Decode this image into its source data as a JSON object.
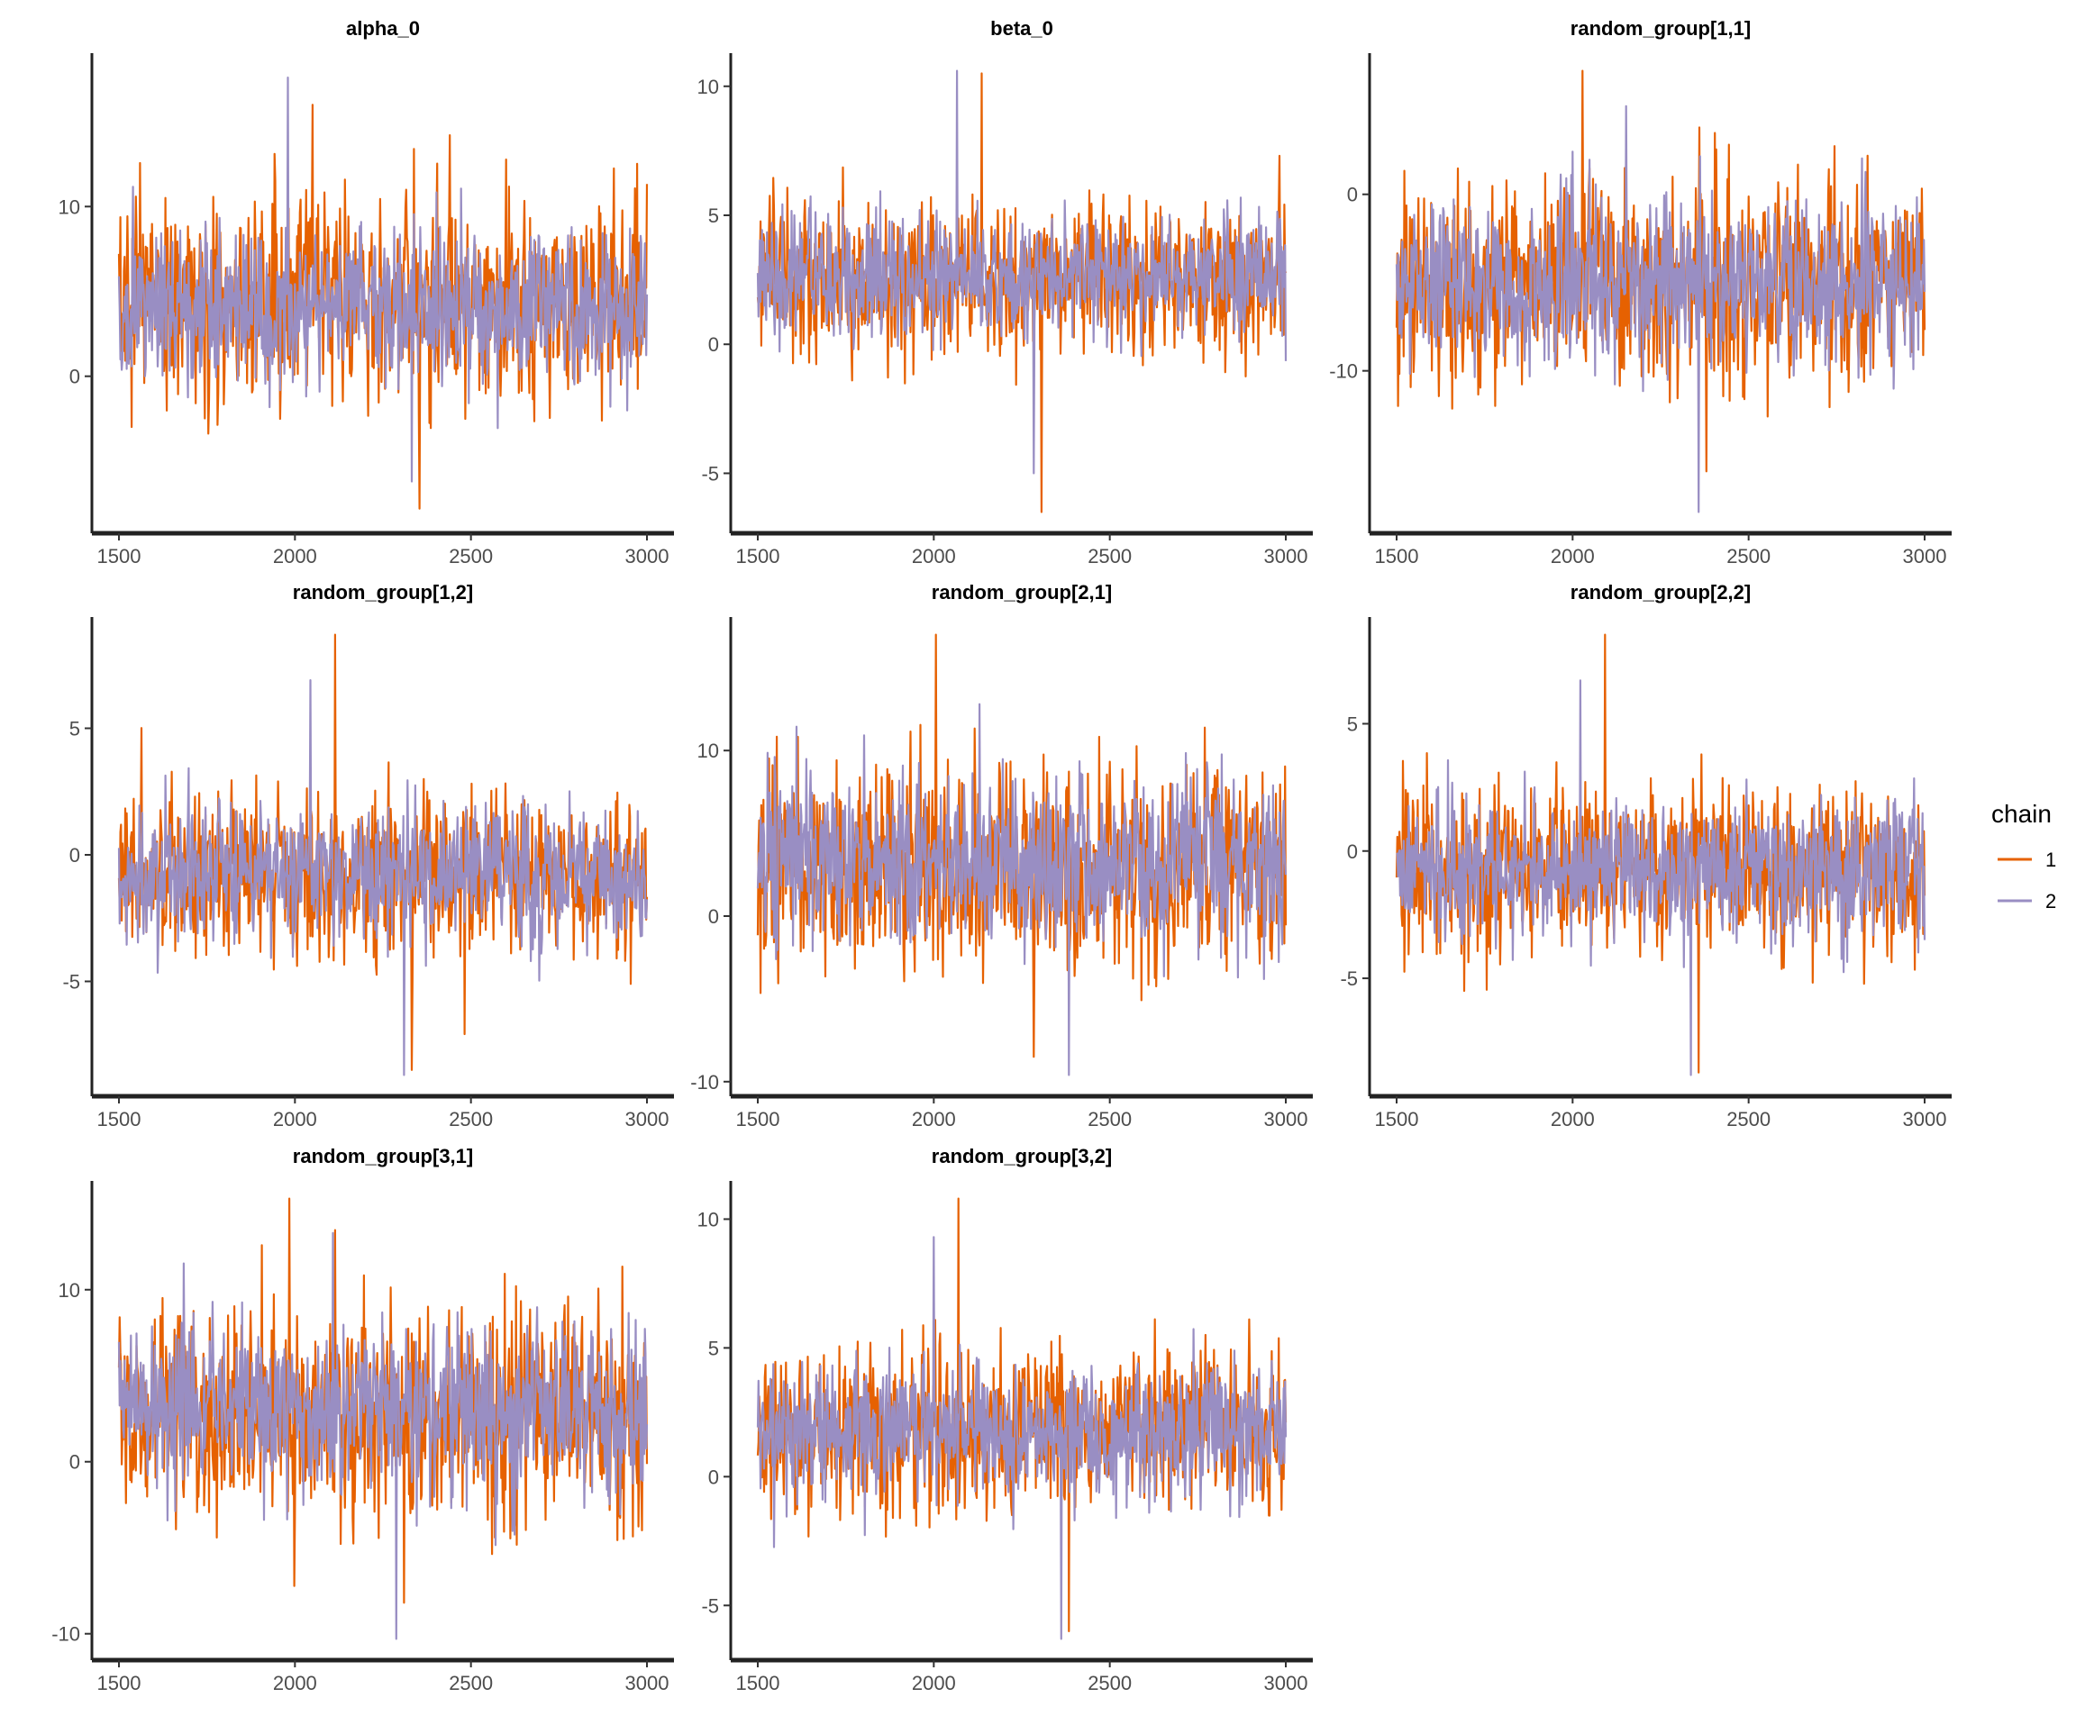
{
  "legend": {
    "title": "chain",
    "entries": [
      {
        "label": "1",
        "color": "#E66101"
      },
      {
        "label": "2",
        "color": "#998EC3"
      }
    ],
    "placement": "right"
  },
  "chart_data": [
    {
      "type": "line",
      "title": "alpha_0",
      "xlim": [
        1500,
        3000
      ],
      "xticks": [
        1500,
        2000,
        2500,
        3000
      ],
      "ylim": [
        -8,
        18
      ],
      "yticks": [
        0,
        10
      ],
      "ytick_labels": [
        "0",
        "10"
      ],
      "grid": false,
      "series": [
        {
          "name": "1",
          "color": "#E66101",
          "summary": {
            "center": 4.5,
            "spread": 3.0,
            "min": -7.8,
            "max": 16.0
          }
        },
        {
          "name": "2",
          "color": "#998EC3",
          "summary": {
            "center": 4.0,
            "spread": 2.4,
            "min": -6.2,
            "max": 17.6
          }
        }
      ]
    },
    {
      "type": "line",
      "title": "beta_0",
      "xlim": [
        1500,
        3000
      ],
      "xticks": [
        1500,
        2000,
        2500,
        3000
      ],
      "ylim": [
        -6.5,
        10.6
      ],
      "yticks": [
        -5,
        0,
        5,
        10
      ],
      "ytick_labels": [
        "-5",
        "0",
        "5",
        "10"
      ],
      "grid": false,
      "series": [
        {
          "name": "1",
          "color": "#E66101",
          "summary": {
            "center": 2.5,
            "spread": 1.5,
            "min": -6.5,
            "max": 10.5
          }
        },
        {
          "name": "2",
          "color": "#998EC3",
          "summary": {
            "center": 2.6,
            "spread": 1.2,
            "min": -5.0,
            "max": 10.6
          }
        }
      ]
    },
    {
      "type": "line",
      "title": "random_group[1,1]",
      "xlim": [
        1500,
        3000
      ],
      "xticks": [
        1500,
        2000,
        2500,
        3000
      ],
      "ylim": [
        -18,
        7
      ],
      "yticks": [
        -10,
        0
      ],
      "ytick_labels": [
        "-10",
        "0"
      ],
      "grid": false,
      "series": [
        {
          "name": "1",
          "color": "#E66101",
          "summary": {
            "center": -5.0,
            "spread": 2.8,
            "min": -15.7,
            "max": 7.0
          }
        },
        {
          "name": "2",
          "color": "#998EC3",
          "summary": {
            "center": -5.0,
            "spread": 2.3,
            "min": -18.0,
            "max": 5.0
          }
        }
      ]
    },
    {
      "type": "line",
      "title": "random_group[1,2]",
      "xlim": [
        1500,
        3000
      ],
      "xticks": [
        1500,
        2000,
        2500,
        3000
      ],
      "ylim": [
        -8.7,
        8.7
      ],
      "yticks": [
        -5,
        0,
        5
      ],
      "ytick_labels": [
        "-5",
        "0",
        "5"
      ],
      "grid": false,
      "series": [
        {
          "name": "1",
          "color": "#E66101",
          "summary": {
            "center": -0.7,
            "spread": 1.6,
            "min": -8.5,
            "max": 8.7
          }
        },
        {
          "name": "2",
          "color": "#998EC3",
          "summary": {
            "center": -0.7,
            "spread": 1.3,
            "min": -8.7,
            "max": 6.9
          }
        }
      ]
    },
    {
      "type": "line",
      "title": "random_group[2,1]",
      "xlim": [
        1500,
        3000
      ],
      "xticks": [
        1500,
        2000,
        2500,
        3000
      ],
      "ylim": [
        -9.6,
        17
      ],
      "yticks": [
        -10,
        0,
        10
      ],
      "ytick_labels": [
        "-10",
        "0",
        "10"
      ],
      "grid": false,
      "series": [
        {
          "name": "1",
          "color": "#E66101",
          "summary": {
            "center": 3.0,
            "spread": 3.2,
            "min": -8.5,
            "max": 17.0
          }
        },
        {
          "name": "2",
          "color": "#998EC3",
          "summary": {
            "center": 3.5,
            "spread": 2.6,
            "min": -9.6,
            "max": 12.8
          }
        }
      ]
    },
    {
      "type": "line",
      "title": "random_group[2,2]",
      "xlim": [
        1500,
        3000
      ],
      "xticks": [
        1500,
        2000,
        2500,
        3000
      ],
      "ylim": [
        -8.8,
        8.5
      ],
      "yticks": [
        -5,
        0,
        5
      ],
      "ytick_labels": [
        "-5",
        "0",
        "5"
      ],
      "grid": false,
      "series": [
        {
          "name": "1",
          "color": "#E66101",
          "summary": {
            "center": -0.7,
            "spread": 1.6,
            "min": -8.7,
            "max": 8.5
          }
        },
        {
          "name": "2",
          "color": "#998EC3",
          "summary": {
            "center": -0.7,
            "spread": 1.3,
            "min": -8.8,
            "max": 6.7
          }
        }
      ]
    },
    {
      "type": "line",
      "title": "random_group[3,1]",
      "xlim": [
        1500,
        3000
      ],
      "xticks": [
        1500,
        2000,
        2500,
        3000
      ],
      "ylim": [
        -10.3,
        15.3
      ],
      "yticks": [
        -10,
        0,
        10
      ],
      "ytick_labels": [
        "-10",
        "0",
        "10"
      ],
      "grid": false,
      "series": [
        {
          "name": "1",
          "color": "#E66101",
          "summary": {
            "center": 2.5,
            "spread": 3.0,
            "min": -8.2,
            "max": 15.3
          }
        },
        {
          "name": "2",
          "color": "#998EC3",
          "summary": {
            "center": 3.0,
            "spread": 2.5,
            "min": -10.3,
            "max": 13.3
          }
        }
      ]
    },
    {
      "type": "line",
      "title": "random_group[3,2]",
      "xlim": [
        1500,
        3000
      ],
      "xticks": [
        1500,
        2000,
        2500,
        3000
      ],
      "ylim": [
        -6.3,
        10.8
      ],
      "yticks": [
        -5,
        0,
        5,
        10
      ],
      "ytick_labels": [
        "-5",
        "0",
        "5",
        "10"
      ],
      "grid": false,
      "series": [
        {
          "name": "1",
          "color": "#E66101",
          "summary": {
            "center": 1.8,
            "spread": 1.6,
            "min": -6.0,
            "max": 10.8
          }
        },
        {
          "name": "2",
          "color": "#998EC3",
          "summary": {
            "center": 1.8,
            "spread": 1.3,
            "min": -6.3,
            "max": 9.3
          }
        }
      ]
    }
  ]
}
